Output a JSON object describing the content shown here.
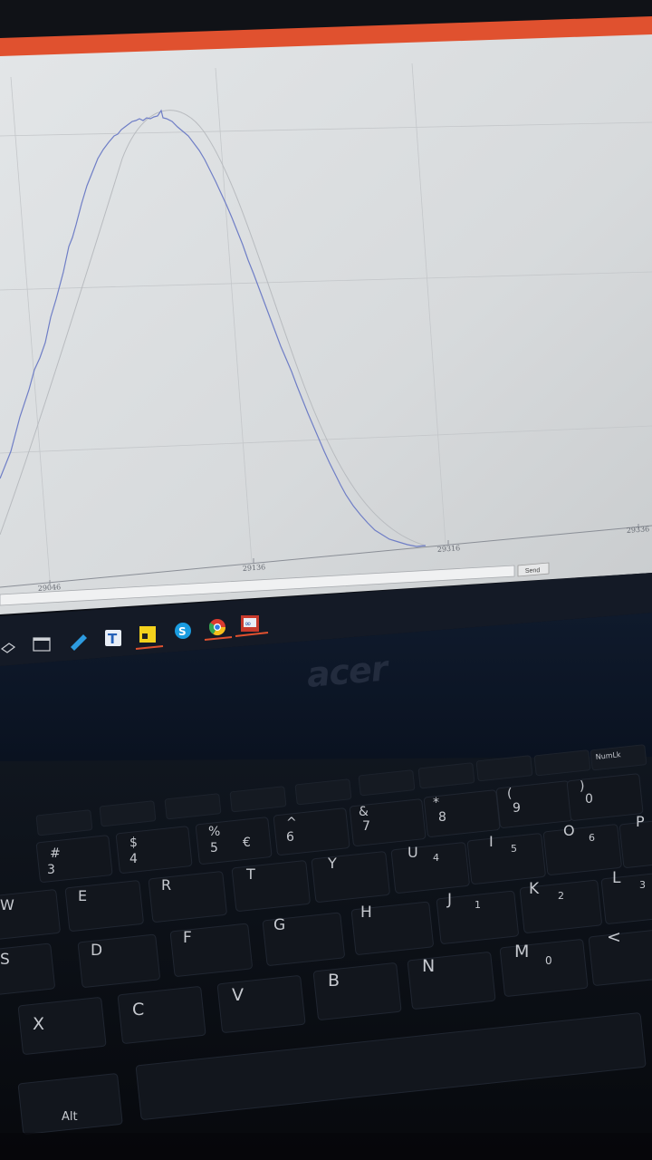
{
  "screen": {
    "accent_color": "#e0512f",
    "plot": {
      "curve_color": "#6f7ec6",
      "x_tick_labels": [
        "29046",
        "29136",
        "29316",
        "29336"
      ]
    },
    "message_bar": {
      "send_label": "Send"
    },
    "taskbar": {
      "icons": [
        {
          "name": "network-icon"
        },
        {
          "name": "window-icon"
        },
        {
          "name": "pencil-icon"
        },
        {
          "name": "text-app-icon",
          "letter": "T"
        },
        {
          "name": "sticky-notes-icon"
        },
        {
          "name": "skype-icon",
          "letter": "S"
        },
        {
          "name": "chrome-icon"
        },
        {
          "name": "serial-app-icon",
          "letter": "∞"
        }
      ]
    }
  },
  "laptop": {
    "brand": "acer",
    "keys": {
      "row_numbers": [
        "#",
        "3",
        "$",
        "4",
        "%",
        "5",
        "€",
        "^",
        "6",
        "&",
        "7",
        "*",
        "8",
        "(",
        "9",
        ")",
        "0"
      ],
      "row_top": [
        "W",
        "E",
        "R",
        "T",
        "Y",
        "U",
        "4",
        "I",
        "5",
        "O",
        "6",
        "P"
      ],
      "row_home": [
        "S",
        "D",
        "F",
        "G",
        "H",
        "J",
        "1",
        "K",
        "2",
        "L",
        "3"
      ],
      "row_bottom": [
        "X",
        "C",
        "V",
        "B",
        "N",
        "M",
        "0",
        "<"
      ],
      "alt": "Alt",
      "numlk": "NumLk"
    }
  }
}
